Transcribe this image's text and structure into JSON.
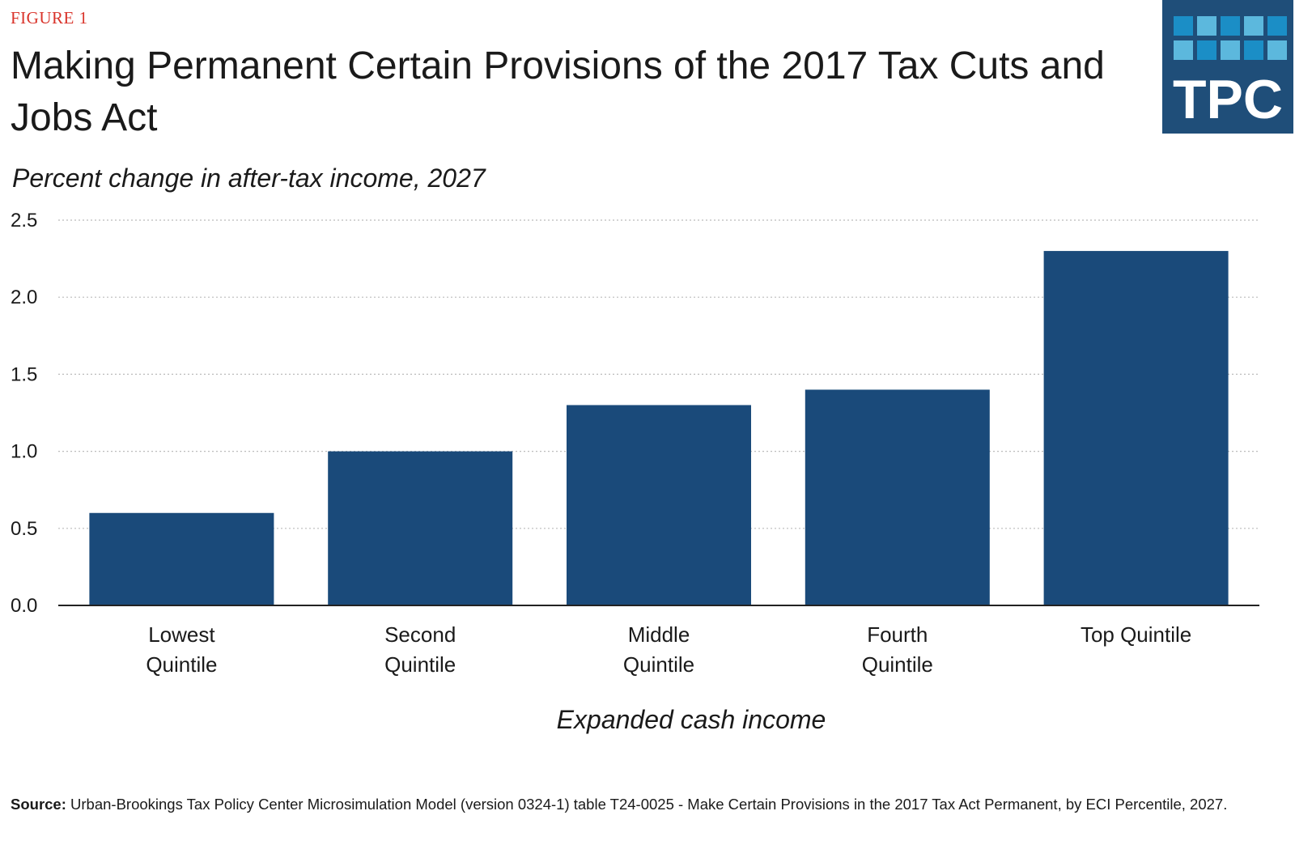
{
  "figure_label": "FIGURE 1",
  "title": "Making Permanent Certain Provisions of the 2017 Tax Cuts and Jobs Act",
  "subtitle": "Percent change in after-tax income, 2027",
  "logo": {
    "text": "TPC",
    "bg_color": "#1f4e79",
    "tile_colors": [
      "#1b8ec6",
      "#5cb8dd",
      "#1b8ec6",
      "#5cb8dd"
    ]
  },
  "colors": {
    "figure_label": "#d9342b",
    "bar": "#1a4a7a",
    "grid": "#bbbbbb",
    "axis": "#222222"
  },
  "chart_data": {
    "type": "bar",
    "title": "Making Permanent Certain Provisions of the 2017 Tax Cuts and Jobs Act",
    "ylabel": "Percent change in after-tax income, 2027",
    "xlabel": "Expanded cash income",
    "categories": [
      [
        "Lowest",
        "Quintile"
      ],
      [
        "Second",
        "Quintile"
      ],
      [
        "Middle",
        "Quintile"
      ],
      [
        "Fourth",
        "Quintile"
      ],
      [
        "Top Quintile"
      ]
    ],
    "values": [
      0.6,
      1.0,
      1.3,
      1.4,
      2.3
    ],
    "ylim": [
      0,
      2.5
    ],
    "yticks": [
      "0.0",
      "0.5",
      "1.0",
      "1.5",
      "2.0",
      "2.5"
    ],
    "grid": true
  },
  "source": {
    "label": "Source:",
    "text": "Urban-Brookings Tax Policy Center Microsimulation Model (version 0324-1) table T24-0025 - Make Certain Provisions in the 2017 Tax Act Permanent, by ECI Percentile, 2027."
  }
}
